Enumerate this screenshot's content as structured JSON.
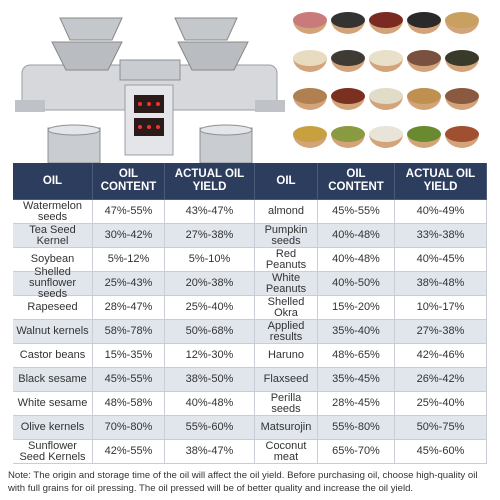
{
  "table": {
    "header": [
      "OIL",
      "OIL CONTENT",
      "ACTUAL OIL YIELD",
      "OIL",
      "OIL CONTENT",
      "ACTUAL OIL YIELD"
    ],
    "rows": [
      [
        "Watermelon seeds",
        "47%-55%",
        "43%-47%",
        "almond",
        "45%-55%",
        "40%-49%"
      ],
      [
        "Tea Seed Kernel",
        "30%-42%",
        "27%-38%",
        "Pumpkin seeds",
        "40%-48%",
        "33%-38%"
      ],
      [
        "Soybean",
        "5%-12%",
        "5%-10%",
        "Red Peanuts",
        "40%-48%",
        "40%-45%"
      ],
      [
        "Shelled sunflower seeds",
        "25%-43%",
        "20%-38%",
        "White Peanuts",
        "40%-50%",
        "38%-48%"
      ],
      [
        "Rapeseed",
        "28%-47%",
        "25%-40%",
        "Shelled Okra",
        "15%-20%",
        "10%-17%"
      ],
      [
        "Walnut kernels",
        "58%-78%",
        "50%-68%",
        "Applied results",
        "35%-40%",
        "27%-38%"
      ],
      [
        "Castor beans",
        "15%-35%",
        "12%-30%",
        "Haruno",
        "48%-65%",
        "42%-46%"
      ],
      [
        "Black sesame",
        "45%-55%",
        "38%-50%",
        "Flaxseed",
        "35%-45%",
        "26%-42%"
      ],
      [
        "White sesame",
        "48%-58%",
        "40%-48%",
        "Perilla seeds",
        "28%-45%",
        "25%-40%"
      ],
      [
        "Olive kernels",
        "70%-80%",
        "55%-60%",
        "Matsurojin",
        "55%-80%",
        "50%-75%"
      ],
      [
        "Sunflower Seed Kernels",
        "42%-55%",
        "38%-47%",
        "Coconut meat",
        "65%-70%",
        "45%-60%"
      ]
    ]
  },
  "note": "Note: The origin and storage time of the oil will affect the oil yield. Before purchasing oil, choose high-quality oil with full grains for oil pressing. The oil pressed will be of better quality and increase the oil yield."
}
